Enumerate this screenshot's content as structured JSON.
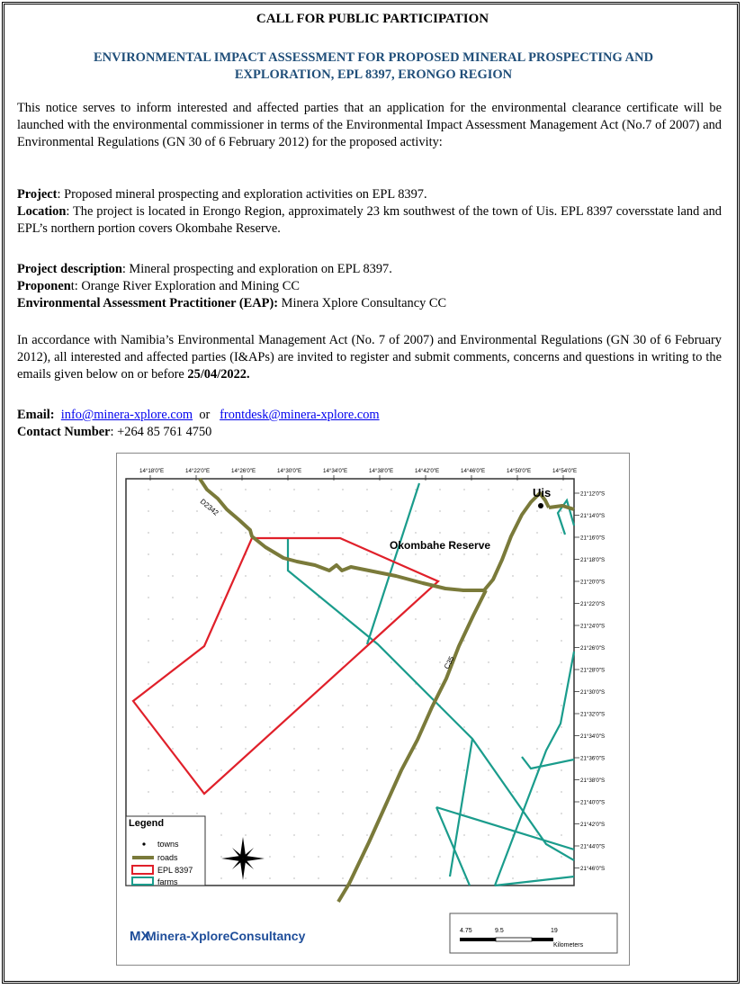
{
  "title": "CALL FOR PUBLIC PARTICIPATION",
  "subtitle_line1": "ENVIRONMENTAL IMPACT ASSESSMENT FOR PROPOSED MINERAL PROSPECTING AND",
  "subtitle_line2": "EXPLORATION, EPL 8397, ERONGO REGION",
  "intro": "This notice serves to inform interested and affected parties that an application for the environmental clearance certificate will be launched with the environmental commissioner in terms of the Environmental Impact Assessment Management Act (No.7 of 2007) and Environmental Regulations (GN 30 of 6 February 2012) for the proposed activity:",
  "project": {
    "label": "Project",
    "value": ": Proposed mineral prospecting and exploration activities on EPL 8397."
  },
  "location": {
    "label": "Location",
    "value": ":  The project is located in Erongo Region, approximately 23 km southwest of the town of Uis. EPL 8397 coversstate land and EPL’s northern portion covers Okombahe Reserve."
  },
  "project_description": {
    "label": "Project description",
    "value": ": Mineral prospecting and exploration on EPL 8397."
  },
  "proponent": {
    "label_bold": "Proponen",
    "label_rest": "t: Orange River Exploration and Mining CC"
  },
  "eap": {
    "label": "Environmental Assessment Practitioner (EAP):",
    "value": " Minera Xplore Consultancy CC"
  },
  "accordance": {
    "text": "In accordance with Namibia’s Environmental Management Act (No. 7 of 2007) and Environmental Regulations (GN 30 of 6 February 2012), all interested and affected parties (I&APs) are invited to register and submit comments, concerns and questions in writing to the emails given below on or before ",
    "date": "25/04/2022."
  },
  "contact": {
    "email_label": "Email:",
    "email1": "info@minera-xplore.com",
    "or": "or",
    "email2": "frontdesk@minera-xplore.com",
    "number_label": "Contact Number",
    "number": ": +264 85 761 4750"
  },
  "map": {
    "top_ticks": [
      "14°18'0\"E",
      "14°22'0\"E",
      "14°26'0\"E",
      "14°30'0\"E",
      "14°34'0\"E",
      "14°38'0\"E",
      "14°42'0\"E",
      "14°46'0\"E",
      "14°50'0\"E",
      "14°54'0\"E"
    ],
    "right_ticks": [
      "21°12'0\"S",
      "21°14'0\"S",
      "21°16'0\"S",
      "21°18'0\"S",
      "21°20'0\"S",
      "21°22'0\"S",
      "21°24'0\"S",
      "21°26'0\"S",
      "21°28'0\"S",
      "21°30'0\"S",
      "21°32'0\"S",
      "21°34'0\"S",
      "21°36'0\"S",
      "21°38'0\"S",
      "21°40'0\"S",
      "21°42'0\"S",
      "21°44'0\"S",
      "21°46'0\"S"
    ],
    "town_label": "Uis",
    "reserve_label": "Okombahe Reserve",
    "road1_label": "D2342",
    "road2_label": "C35",
    "legend": {
      "title": "Legend",
      "items": [
        "towns",
        "roads",
        "EPL 8397",
        "farms"
      ]
    },
    "company": "Minera-XploreConsultancy",
    "logo_letters": "MX",
    "scale": {
      "ticks": [
        "4.75",
        "9.5",
        "19"
      ],
      "unit": "Kilometers"
    },
    "colors": {
      "epl": "#e0202a",
      "farms": "#1a9c8c",
      "roads": "#7a7a3a"
    }
  }
}
